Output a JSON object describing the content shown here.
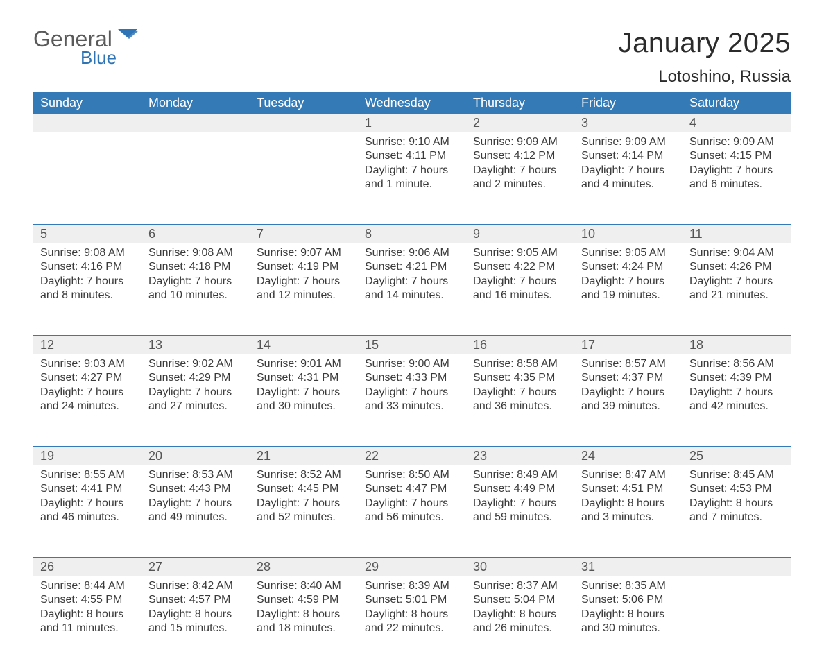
{
  "logo": {
    "text_general": "General",
    "text_blue": "Blue"
  },
  "title": "January 2025",
  "location": "Lotoshino, Russia",
  "colors": {
    "header_bg": "#337ab7",
    "header_text": "#ffffff",
    "daynum_bg": "#efefef",
    "week_border": "#337ab7",
    "body_text": "#3a3a3a",
    "logo_gray": "#5a5a5a",
    "logo_blue": "#2f74b5",
    "page_bg": "#ffffff"
  },
  "days_of_week": [
    "Sunday",
    "Monday",
    "Tuesday",
    "Wednesday",
    "Thursday",
    "Friday",
    "Saturday"
  ],
  "weeks": [
    {
      "nums": [
        "",
        "",
        "",
        "1",
        "2",
        "3",
        "4"
      ],
      "cells": [
        null,
        null,
        null,
        {
          "sunrise": "Sunrise: 9:10 AM",
          "sunset": "Sunset: 4:11 PM",
          "day1": "Daylight: 7 hours",
          "day2": "and 1 minute."
        },
        {
          "sunrise": "Sunrise: 9:09 AM",
          "sunset": "Sunset: 4:12 PM",
          "day1": "Daylight: 7 hours",
          "day2": "and 2 minutes."
        },
        {
          "sunrise": "Sunrise: 9:09 AM",
          "sunset": "Sunset: 4:14 PM",
          "day1": "Daylight: 7 hours",
          "day2": "and 4 minutes."
        },
        {
          "sunrise": "Sunrise: 9:09 AM",
          "sunset": "Sunset: 4:15 PM",
          "day1": "Daylight: 7 hours",
          "day2": "and 6 minutes."
        }
      ]
    },
    {
      "nums": [
        "5",
        "6",
        "7",
        "8",
        "9",
        "10",
        "11"
      ],
      "cells": [
        {
          "sunrise": "Sunrise: 9:08 AM",
          "sunset": "Sunset: 4:16 PM",
          "day1": "Daylight: 7 hours",
          "day2": "and 8 minutes."
        },
        {
          "sunrise": "Sunrise: 9:08 AM",
          "sunset": "Sunset: 4:18 PM",
          "day1": "Daylight: 7 hours",
          "day2": "and 10 minutes."
        },
        {
          "sunrise": "Sunrise: 9:07 AM",
          "sunset": "Sunset: 4:19 PM",
          "day1": "Daylight: 7 hours",
          "day2": "and 12 minutes."
        },
        {
          "sunrise": "Sunrise: 9:06 AM",
          "sunset": "Sunset: 4:21 PM",
          "day1": "Daylight: 7 hours",
          "day2": "and 14 minutes."
        },
        {
          "sunrise": "Sunrise: 9:05 AM",
          "sunset": "Sunset: 4:22 PM",
          "day1": "Daylight: 7 hours",
          "day2": "and 16 minutes."
        },
        {
          "sunrise": "Sunrise: 9:05 AM",
          "sunset": "Sunset: 4:24 PM",
          "day1": "Daylight: 7 hours",
          "day2": "and 19 minutes."
        },
        {
          "sunrise": "Sunrise: 9:04 AM",
          "sunset": "Sunset: 4:26 PM",
          "day1": "Daylight: 7 hours",
          "day2": "and 21 minutes."
        }
      ]
    },
    {
      "nums": [
        "12",
        "13",
        "14",
        "15",
        "16",
        "17",
        "18"
      ],
      "cells": [
        {
          "sunrise": "Sunrise: 9:03 AM",
          "sunset": "Sunset: 4:27 PM",
          "day1": "Daylight: 7 hours",
          "day2": "and 24 minutes."
        },
        {
          "sunrise": "Sunrise: 9:02 AM",
          "sunset": "Sunset: 4:29 PM",
          "day1": "Daylight: 7 hours",
          "day2": "and 27 minutes."
        },
        {
          "sunrise": "Sunrise: 9:01 AM",
          "sunset": "Sunset: 4:31 PM",
          "day1": "Daylight: 7 hours",
          "day2": "and 30 minutes."
        },
        {
          "sunrise": "Sunrise: 9:00 AM",
          "sunset": "Sunset: 4:33 PM",
          "day1": "Daylight: 7 hours",
          "day2": "and 33 minutes."
        },
        {
          "sunrise": "Sunrise: 8:58 AM",
          "sunset": "Sunset: 4:35 PM",
          "day1": "Daylight: 7 hours",
          "day2": "and 36 minutes."
        },
        {
          "sunrise": "Sunrise: 8:57 AM",
          "sunset": "Sunset: 4:37 PM",
          "day1": "Daylight: 7 hours",
          "day2": "and 39 minutes."
        },
        {
          "sunrise": "Sunrise: 8:56 AM",
          "sunset": "Sunset: 4:39 PM",
          "day1": "Daylight: 7 hours",
          "day2": "and 42 minutes."
        }
      ]
    },
    {
      "nums": [
        "19",
        "20",
        "21",
        "22",
        "23",
        "24",
        "25"
      ],
      "cells": [
        {
          "sunrise": "Sunrise: 8:55 AM",
          "sunset": "Sunset: 4:41 PM",
          "day1": "Daylight: 7 hours",
          "day2": "and 46 minutes."
        },
        {
          "sunrise": "Sunrise: 8:53 AM",
          "sunset": "Sunset: 4:43 PM",
          "day1": "Daylight: 7 hours",
          "day2": "and 49 minutes."
        },
        {
          "sunrise": "Sunrise: 8:52 AM",
          "sunset": "Sunset: 4:45 PM",
          "day1": "Daylight: 7 hours",
          "day2": "and 52 minutes."
        },
        {
          "sunrise": "Sunrise: 8:50 AM",
          "sunset": "Sunset: 4:47 PM",
          "day1": "Daylight: 7 hours",
          "day2": "and 56 minutes."
        },
        {
          "sunrise": "Sunrise: 8:49 AM",
          "sunset": "Sunset: 4:49 PM",
          "day1": "Daylight: 7 hours",
          "day2": "and 59 minutes."
        },
        {
          "sunrise": "Sunrise: 8:47 AM",
          "sunset": "Sunset: 4:51 PM",
          "day1": "Daylight: 8 hours",
          "day2": "and 3 minutes."
        },
        {
          "sunrise": "Sunrise: 8:45 AM",
          "sunset": "Sunset: 4:53 PM",
          "day1": "Daylight: 8 hours",
          "day2": "and 7 minutes."
        }
      ]
    },
    {
      "nums": [
        "26",
        "27",
        "28",
        "29",
        "30",
        "31",
        ""
      ],
      "cells": [
        {
          "sunrise": "Sunrise: 8:44 AM",
          "sunset": "Sunset: 4:55 PM",
          "day1": "Daylight: 8 hours",
          "day2": "and 11 minutes."
        },
        {
          "sunrise": "Sunrise: 8:42 AM",
          "sunset": "Sunset: 4:57 PM",
          "day1": "Daylight: 8 hours",
          "day2": "and 15 minutes."
        },
        {
          "sunrise": "Sunrise: 8:40 AM",
          "sunset": "Sunset: 4:59 PM",
          "day1": "Daylight: 8 hours",
          "day2": "and 18 minutes."
        },
        {
          "sunrise": "Sunrise: 8:39 AM",
          "sunset": "Sunset: 5:01 PM",
          "day1": "Daylight: 8 hours",
          "day2": "and 22 minutes."
        },
        {
          "sunrise": "Sunrise: 8:37 AM",
          "sunset": "Sunset: 5:04 PM",
          "day1": "Daylight: 8 hours",
          "day2": "and 26 minutes."
        },
        {
          "sunrise": "Sunrise: 8:35 AM",
          "sunset": "Sunset: 5:06 PM",
          "day1": "Daylight: 8 hours",
          "day2": "and 30 minutes."
        },
        null
      ]
    }
  ]
}
